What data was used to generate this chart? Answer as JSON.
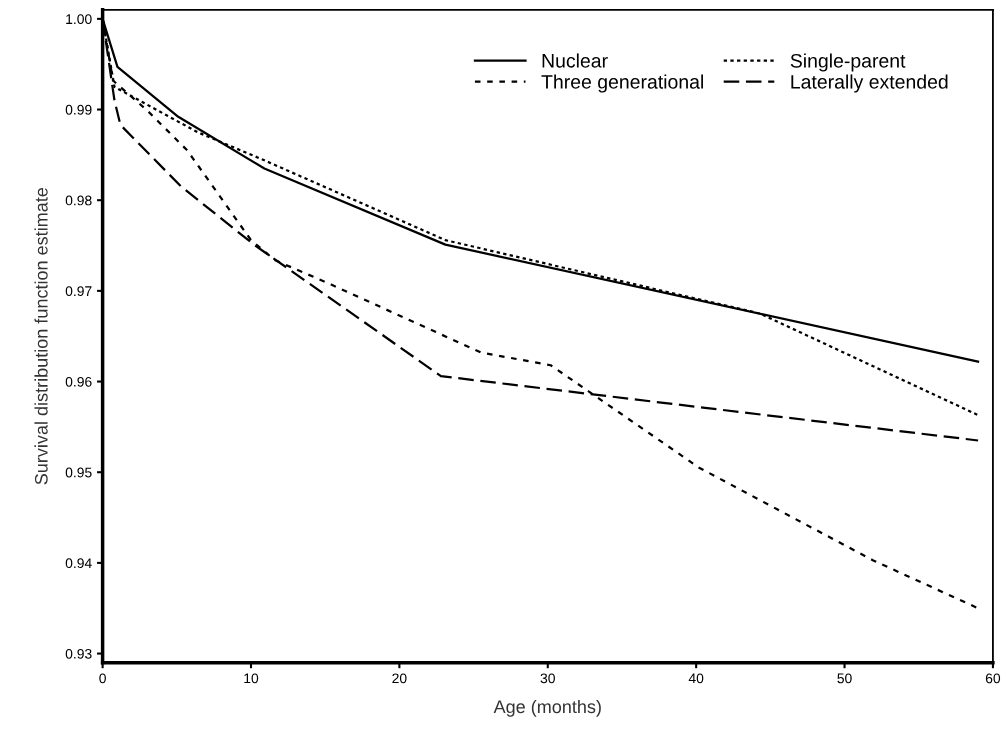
{
  "chart_data": {
    "type": "line",
    "xlabel": "Age (months)",
    "ylabel": "Survival distribution function estimate",
    "xlim": [
      0,
      60
    ],
    "xticks": [
      0,
      10,
      20,
      30,
      40,
      50,
      60
    ],
    "ylim": [
      0.929,
      1.001
    ],
    "yticks": [
      0.93,
      0.94,
      0.95,
      0.96,
      0.97,
      0.98,
      0.99,
      {
        "value": 1.0,
        "label": "1.00"
      }
    ],
    "grid": false,
    "legend": "top right",
    "marker": "none",
    "series": [
      {
        "name": "Nuclear",
        "color": "#000000",
        "line_style": "solid",
        "x": [
          0,
          1.0,
          5.1,
          10.9,
          23.1,
          59
        ],
        "values": [
          1.0,
          0.9947,
          0.9892,
          0.9835,
          0.9751,
          0.9622
        ]
      },
      {
        "name": "Single-parent",
        "color": "#000000",
        "line_style": "dotted",
        "x": [
          0,
          0.8,
          6.4,
          10.9,
          23.1,
          44.3,
          59
        ],
        "values": [
          1.0,
          0.9925,
          0.9875,
          0.9844,
          0.9756,
          0.9675,
          0.9563
        ]
      },
      {
        "name": "Three generational",
        "color": "#000000",
        "line_style": "loosely dashed",
        "x": [
          0,
          0.7,
          3.0,
          5.7,
          10.0,
          11.6,
          15.4,
          25.5,
          30.2,
          40.2,
          51.9,
          59
        ],
        "values": [
          1.0,
          0.9932,
          0.9899,
          0.9855,
          0.9756,
          0.9734,
          0.9707,
          0.9632,
          0.9618,
          0.9505,
          0.9403,
          0.935
        ]
      },
      {
        "name": "Laterally extended",
        "color": "#000000",
        "line_style": "dashed",
        "x": [
          0,
          0.8,
          1.2,
          5.3,
          10.2,
          22.8,
          40.6,
          59
        ],
        "values": [
          1.0,
          0.991,
          0.9883,
          0.9815,
          0.9751,
          0.9606,
          0.9571,
          0.9535
        ]
      }
    ]
  }
}
